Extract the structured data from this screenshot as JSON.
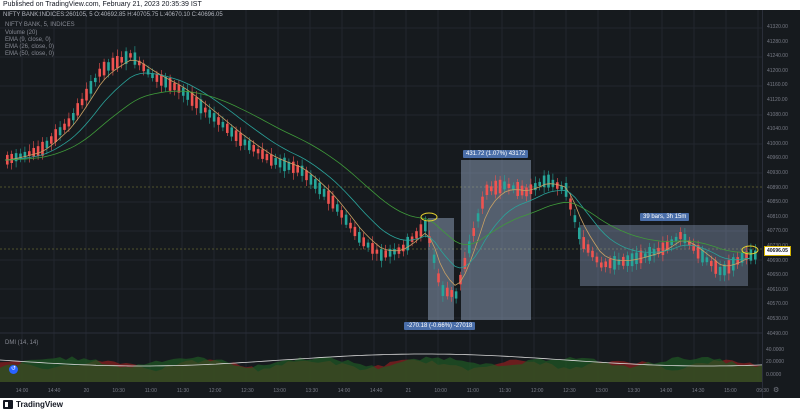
{
  "header": {
    "published": "Published on TradingView.com, February 21, 2023 20:35:39 IST",
    "quote": "NIFTY BANK:INDICES:260105, 5 O:40692.85 H:40705.75 L:40670.10 C:40696.05"
  },
  "legend": {
    "symbol": "NIFTY BANK, 5, INDICES",
    "items": [
      "Volume (20)",
      "EMA (9, close, 0)",
      "EMA (26, close, 0)",
      "EMA (50, close, 0)"
    ]
  },
  "price_scale": [
    "41320.00",
    "41280.00",
    "41240.00",
    "41200.00",
    "41160.00",
    "41120.00",
    "41080.00",
    "41040.00",
    "41000.00",
    "40960.00",
    "40930.00",
    "40890.00",
    "40850.00",
    "40810.00",
    "40770.00",
    "40730.00",
    "40690.00",
    "40650.00",
    "40610.00",
    "40570.00",
    "40530.00",
    "40490.00"
  ],
  "last_price": "40696.05",
  "time_axis": [
    "14:00",
    "14:40",
    "20",
    "10:30",
    "11:00",
    "11:30",
    "12:00",
    "12:30",
    "13:00",
    "13:30",
    "14:00",
    "14:40",
    "21",
    "10:00",
    "11:00",
    "11:30",
    "12:00",
    "12:30",
    "13:00",
    "13:30",
    "14:00",
    "14:30",
    "15:00",
    "09:30"
  ],
  "annotations": {
    "drop": "-270.18 (-0.66%) -27018",
    "rise": "431.72 (1.07%) 43172",
    "range": "39 bars, 3h 15m"
  },
  "dmi": {
    "label": "DMI (14, 14)",
    "ticks": [
      "40.0000",
      "20.0000",
      "0.0000"
    ]
  },
  "footer": {
    "brand": "TradingView"
  },
  "colors": {
    "up": "#26a69a",
    "down": "#ef5350",
    "ema9": "#c8a064",
    "ema26": "#2aa39a",
    "ema50": "#3f9b3a",
    "box": "#9fb3d1",
    "label": "#4a6ea9"
  }
}
